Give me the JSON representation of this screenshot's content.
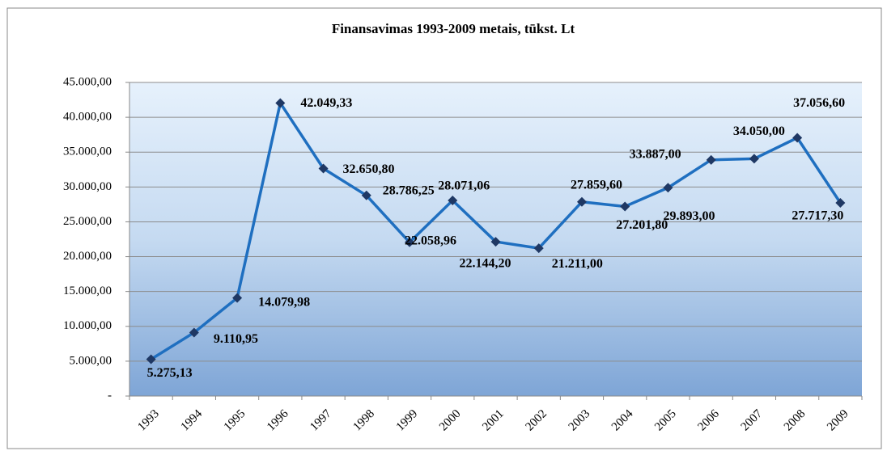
{
  "chart_data": {
    "type": "line",
    "title": "Finansavimas 1993-2009 metais, tūkst. Lt",
    "categories": [
      "1993",
      "1994",
      "1995",
      "1996",
      "1997",
      "1998",
      "1999",
      "2000",
      "2001",
      "2002",
      "2003",
      "2004",
      "2005",
      "2006",
      "2007",
      "2008",
      "2009"
    ],
    "series": [
      {
        "name": "Finansavimas",
        "color": "#1f6fc0",
        "marker_color": "#1f3864",
        "values": [
          5275.13,
          9110.95,
          14079.98,
          42049.33,
          32650.8,
          28786.25,
          22058.96,
          28071.06,
          22144.2,
          21211.0,
          27859.6,
          27201.8,
          29893.0,
          33887.0,
          34050.0,
          37056.6,
          27717.3
        ],
        "value_labels": [
          "5.275,13",
          "9.110,95",
          "14.079,98",
          "42.049,33",
          "32.650,80",
          "28.786,25",
          "22.058,96",
          "28.071,06",
          "22.144,20",
          "21.211,00",
          "27.859,60",
          "27.201,80",
          "29.893,00",
          "33.887,00",
          "34.050,00",
          "37.056,60",
          "27.717,30"
        ]
      }
    ],
    "ylim": [
      0,
      45000
    ],
    "yticks": [
      {
        "value": 0,
        "label": "-"
      },
      {
        "value": 5000,
        "label": "5.000,00"
      },
      {
        "value": 10000,
        "label": "10.000,00"
      },
      {
        "value": 15000,
        "label": "15.000,00"
      },
      {
        "value": 20000,
        "label": "20.000,00"
      },
      {
        "value": 25000,
        "label": "25.000,00"
      },
      {
        "value": 30000,
        "label": "30.000,00"
      },
      {
        "value": 35000,
        "label": "35.000,00"
      },
      {
        "value": 40000,
        "label": "40.000,00"
      },
      {
        "value": 45000,
        "label": "45.000,00"
      }
    ],
    "grid": true
  }
}
